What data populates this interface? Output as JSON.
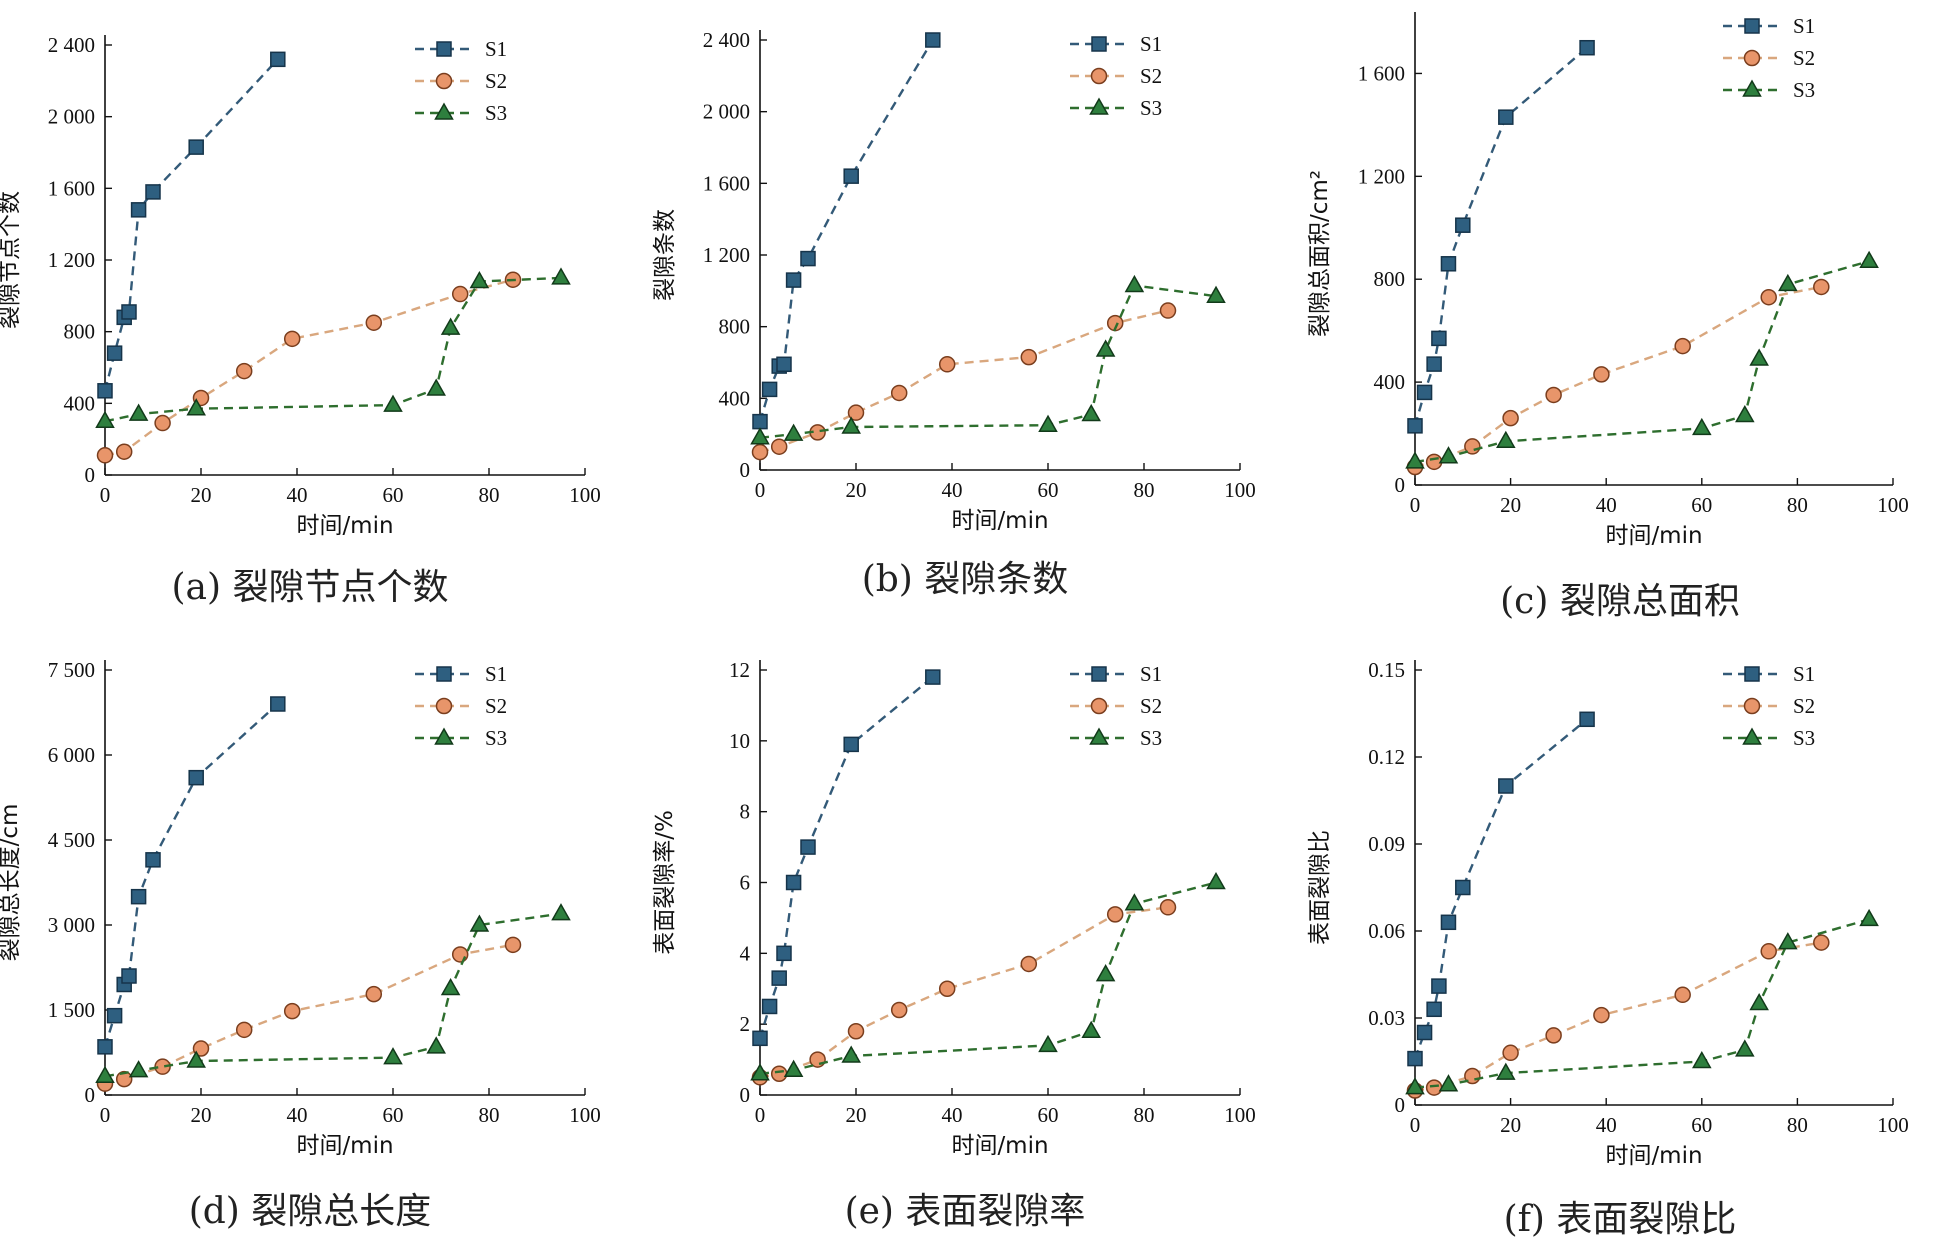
{
  "colors": {
    "S1": "#2e5f80",
    "S2": "#e8956a",
    "S3": "#2e7f3e",
    "S1_edge": "#16344a",
    "S2_edge": "#7a3e1e",
    "S3_edge": "#123a1a",
    "S1_line": "#335a78",
    "S2_line": "#d9a77e",
    "S3_line": "#2e6e2e"
  },
  "chart_data": [
    {
      "type": "line",
      "caption": "(a) 裂隙节点个数",
      "xlabel": "时间/min",
      "ylabel": "裂隙节点个数",
      "xlim": [
        0,
        100
      ],
      "ylim": [
        0,
        2400
      ],
      "xticks": [
        0,
        20,
        40,
        60,
        80,
        100
      ],
      "yticks": [
        0,
        400,
        800,
        1200,
        1600,
        2000,
        2400
      ],
      "ytick_labels": [
        "0",
        "400",
        "800",
        "1 200",
        "1 600",
        "2 000",
        "2 400"
      ],
      "legend_position": "top-right",
      "grid": false,
      "series": [
        {
          "name": "S1",
          "marker": "square",
          "x": [
            0,
            2,
            4,
            5,
            7,
            10,
            19,
            36
          ],
          "y": [
            470,
            680,
            880,
            910,
            1480,
            1580,
            1830,
            2320
          ]
        },
        {
          "name": "S2",
          "marker": "circle",
          "x": [
            0,
            4,
            12,
            20,
            29,
            39,
            56,
            74,
            85
          ],
          "y": [
            110,
            130,
            290,
            430,
            580,
            760,
            850,
            1010,
            1090
          ]
        },
        {
          "name": "S3",
          "marker": "triangle",
          "x": [
            0,
            7,
            19,
            60,
            69,
            72,
            78,
            95
          ],
          "y": [
            300,
            340,
            370,
            390,
            480,
            820,
            1080,
            1100
          ]
        }
      ]
    },
    {
      "type": "line",
      "caption": "(b) 裂隙条数",
      "xlabel": "时间/min",
      "ylabel": "裂隙条数",
      "xlim": [
        0,
        100
      ],
      "ylim": [
        0,
        2400
      ],
      "xticks": [
        0,
        20,
        40,
        60,
        80,
        100
      ],
      "yticks": [
        0,
        400,
        800,
        1200,
        1600,
        2000,
        2400
      ],
      "ytick_labels": [
        "0",
        "400",
        "800",
        "1 200",
        "1 600",
        "2 000",
        "2 400"
      ],
      "legend_position": "top-right",
      "grid": false,
      "series": [
        {
          "name": "S1",
          "marker": "square",
          "x": [
            0,
            2,
            4,
            5,
            7,
            10,
            19,
            36
          ],
          "y": [
            270,
            450,
            580,
            590,
            1060,
            1180,
            1640,
            2400
          ]
        },
        {
          "name": "S2",
          "marker": "circle",
          "x": [
            0,
            4,
            12,
            20,
            29,
            39,
            56,
            74,
            85
          ],
          "y": [
            100,
            130,
            210,
            320,
            430,
            590,
            630,
            820,
            890
          ]
        },
        {
          "name": "S3",
          "marker": "triangle",
          "x": [
            0,
            7,
            19,
            60,
            69,
            72,
            78,
            95
          ],
          "y": [
            180,
            200,
            240,
            250,
            310,
            670,
            1030,
            970
          ]
        }
      ]
    },
    {
      "type": "line",
      "caption": "(c) 裂隙总面积",
      "xlabel": "时间/min",
      "ylabel": "裂隙总面积/cm²",
      "xlim": [
        0,
        100
      ],
      "ylim": [
        0,
        1800
      ],
      "xticks": [
        0,
        20,
        40,
        60,
        80,
        100
      ],
      "yticks": [
        0,
        400,
        800,
        1200,
        1600
      ],
      "ytick_labels": [
        "0",
        "400",
        "800",
        "1 200",
        "1 600"
      ],
      "legend_position": "top-right",
      "grid": false,
      "series": [
        {
          "name": "S1",
          "marker": "square",
          "x": [
            0,
            2,
            4,
            5,
            7,
            10,
            19,
            36
          ],
          "y": [
            230,
            360,
            470,
            570,
            860,
            1010,
            1430,
            1700
          ]
        },
        {
          "name": "S2",
          "marker": "circle",
          "x": [
            0,
            4,
            12,
            20,
            29,
            39,
            56,
            74,
            85
          ],
          "y": [
            70,
            90,
            150,
            260,
            350,
            430,
            540,
            730,
            770
          ]
        },
        {
          "name": "S3",
          "marker": "triangle",
          "x": [
            0,
            7,
            19,
            60,
            69,
            72,
            78,
            95
          ],
          "y": [
            90,
            110,
            170,
            220,
            270,
            490,
            780,
            870
          ]
        }
      ]
    },
    {
      "type": "line",
      "caption": "(d) 裂隙总长度",
      "xlabel": "时间/min",
      "ylabel": "裂隙总长度/cm",
      "xlim": [
        0,
        100
      ],
      "ylim": [
        0,
        7500
      ],
      "xticks": [
        0,
        20,
        40,
        60,
        80,
        100
      ],
      "yticks": [
        0,
        1500,
        3000,
        4500,
        6000,
        7500
      ],
      "ytick_labels": [
        "0",
        "1 500",
        "3 000",
        "4 500",
        "6 000",
        "7 500"
      ],
      "legend_position": "top-right",
      "grid": false,
      "series": [
        {
          "name": "S1",
          "marker": "square",
          "x": [
            0,
            2,
            4,
            5,
            7,
            10,
            19,
            36
          ],
          "y": [
            850,
            1400,
            1950,
            2100,
            3500,
            4150,
            5600,
            6900
          ]
        },
        {
          "name": "S2",
          "marker": "circle",
          "x": [
            0,
            4,
            12,
            20,
            29,
            39,
            56,
            74,
            85
          ],
          "y": [
            200,
            280,
            500,
            820,
            1150,
            1480,
            1780,
            2480,
            2650
          ]
        },
        {
          "name": "S3",
          "marker": "triangle",
          "x": [
            0,
            7,
            19,
            60,
            69,
            72,
            78,
            95
          ],
          "y": [
            330,
            430,
            600,
            660,
            850,
            1880,
            3000,
            3200
          ]
        }
      ]
    },
    {
      "type": "line",
      "caption": "(e) 表面裂隙率",
      "xlabel": "时间/min",
      "ylabel": "表面裂隙率/%",
      "xlim": [
        0,
        100
      ],
      "ylim": [
        0,
        12
      ],
      "xticks": [
        0,
        20,
        40,
        60,
        80,
        100
      ],
      "yticks": [
        0,
        2,
        4,
        6,
        8,
        10,
        12
      ],
      "ytick_labels": [
        "0",
        "2",
        "4",
        "6",
        "8",
        "10",
        "12"
      ],
      "legend_position": "top-right",
      "grid": false,
      "series": [
        {
          "name": "S1",
          "marker": "square",
          "x": [
            0,
            2,
            4,
            5,
            7,
            10,
            19,
            36
          ],
          "y": [
            1.6,
            2.5,
            3.3,
            4.0,
            6.0,
            7.0,
            9.9,
            11.8
          ]
        },
        {
          "name": "S2",
          "marker": "circle",
          "x": [
            0,
            4,
            12,
            20,
            29,
            39,
            56,
            74,
            85
          ],
          "y": [
            0.5,
            0.6,
            1.0,
            1.8,
            2.4,
            3.0,
            3.7,
            5.1,
            5.3
          ]
        },
        {
          "name": "S3",
          "marker": "triangle",
          "x": [
            0,
            7,
            19,
            60,
            69,
            72,
            78,
            95
          ],
          "y": [
            0.6,
            0.7,
            1.1,
            1.4,
            1.8,
            3.4,
            5.4,
            6.0
          ]
        }
      ]
    },
    {
      "type": "line",
      "caption": "(f) 表面裂隙比",
      "xlabel": "时间/min",
      "ylabel": "表面裂隙比",
      "xlim": [
        0,
        100
      ],
      "ylim": [
        0,
        0.15
      ],
      "xticks": [
        0,
        20,
        40,
        60,
        80,
        100
      ],
      "yticks": [
        0,
        0.03,
        0.06,
        0.09,
        0.12,
        0.15
      ],
      "ytick_labels": [
        "0",
        "0.03",
        "0.06",
        "0.09",
        "0.12",
        "0.15"
      ],
      "legend_position": "top-right",
      "grid": false,
      "series": [
        {
          "name": "S1",
          "marker": "square",
          "x": [
            0,
            2,
            4,
            5,
            7,
            10,
            19,
            36
          ],
          "y": [
            0.016,
            0.025,
            0.033,
            0.041,
            0.063,
            0.075,
            0.11,
            0.133
          ]
        },
        {
          "name": "S2",
          "marker": "circle",
          "x": [
            0,
            4,
            12,
            20,
            29,
            39,
            56,
            74,
            85
          ],
          "y": [
            0.005,
            0.006,
            0.01,
            0.018,
            0.024,
            0.031,
            0.038,
            0.053,
            0.056
          ]
        },
        {
          "name": "S3",
          "marker": "triangle",
          "x": [
            0,
            7,
            19,
            60,
            69,
            72,
            78,
            95
          ],
          "y": [
            0.006,
            0.007,
            0.011,
            0.015,
            0.019,
            0.035,
            0.056,
            0.064
          ]
        }
      ]
    }
  ]
}
